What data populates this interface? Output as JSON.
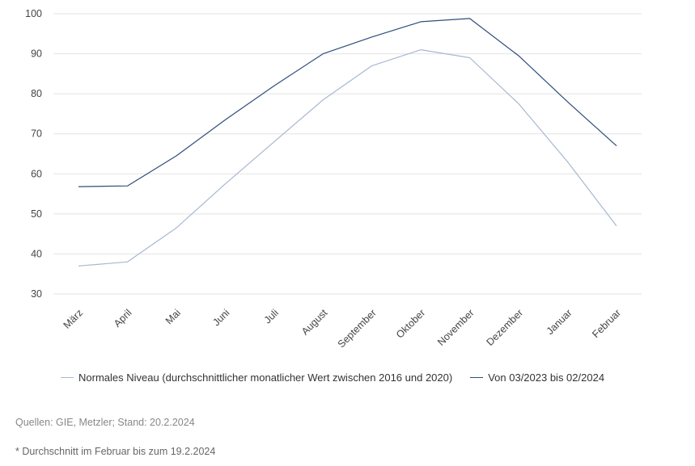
{
  "chart_data": {
    "type": "line",
    "categories": [
      "März",
      "April",
      "Mai",
      "Juni",
      "Juli",
      "August",
      "September",
      "Oktober",
      "November",
      "Dezember",
      "Januar",
      "Februar"
    ],
    "series": [
      {
        "name": "Normales Niveau (durchschnittlicher monatlicher Wert zwischen 2016 und 2020)",
        "color": "#a7b8cf",
        "values": [
          37,
          38,
          46.5,
          57.5,
          68,
          78.5,
          87,
          91,
          89,
          77.5,
          63,
          47
        ]
      },
      {
        "name": "Von 03/2023 bis 02/2024",
        "color": "#2e4d7b",
        "values": [
          56.8,
          57,
          64.5,
          73.5,
          82,
          90,
          94.2,
          98,
          98.8,
          89.5,
          78,
          67
        ]
      }
    ],
    "yticks": [
      30,
      40,
      50,
      60,
      70,
      80,
      90,
      100
    ],
    "ylim": [
      30,
      100
    ],
    "grid": true,
    "legend": "bottom",
    "title": "",
    "xlabel": "",
    "ylabel": ""
  },
  "notes": {
    "source": "Quellen: GIE, Metzler; Stand: 20.2.2024",
    "footnote": "* Durchschnitt im Februar bis zum 19.2.2024"
  }
}
